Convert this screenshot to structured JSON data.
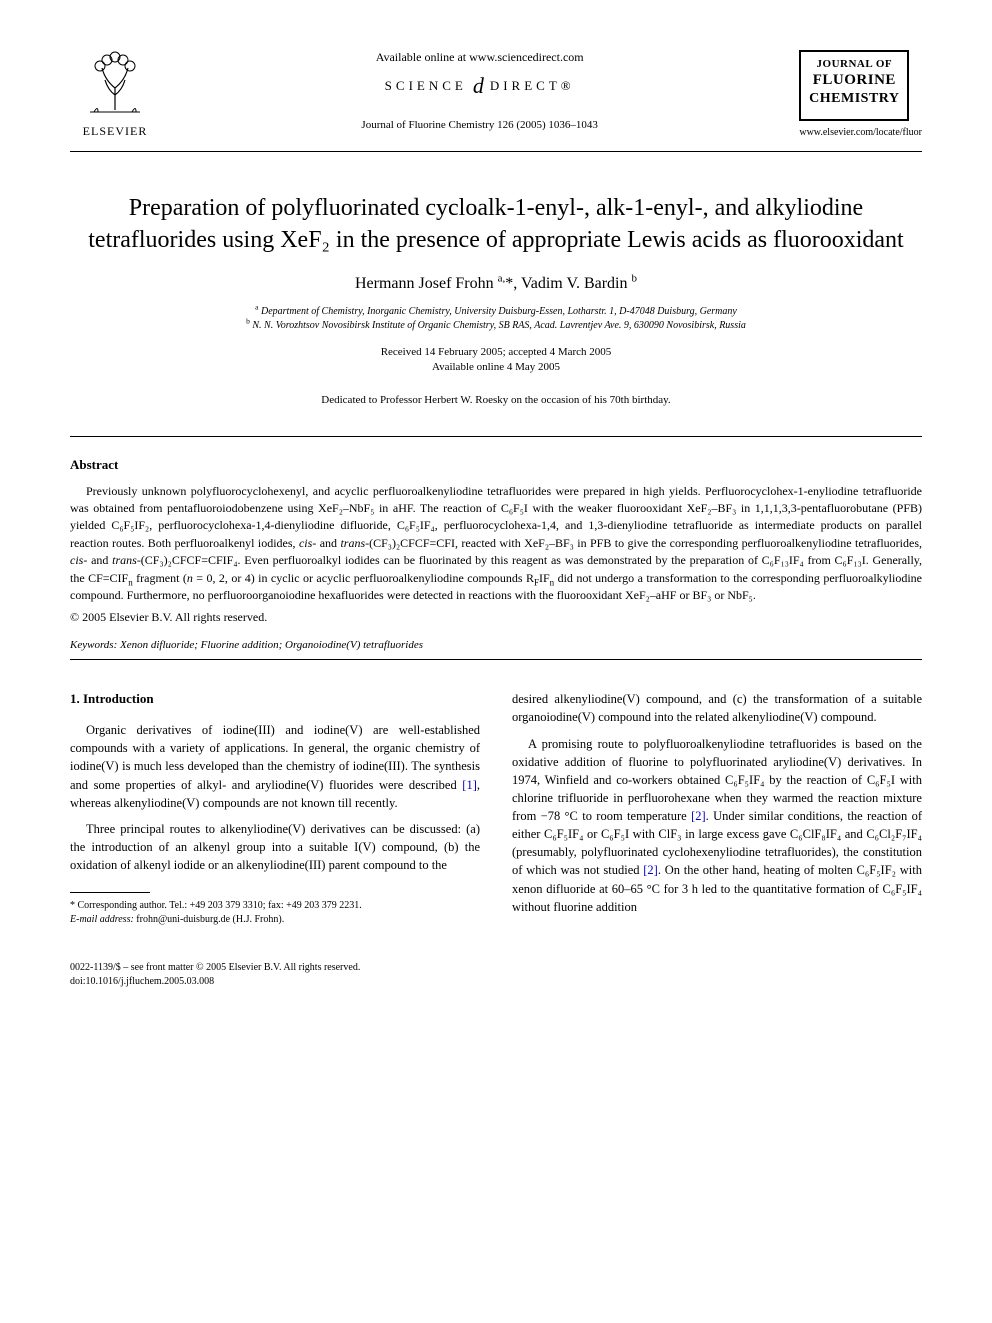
{
  "header": {
    "available_online": "Available online at www.sciencedirect.com",
    "sciencedirect_left": "SCIENCE",
    "sciencedirect_right": "DIRECT®",
    "citation": "Journal of Fluorine Chemistry 126 (2005) 1036–1043",
    "elsevier": "ELSEVIER",
    "journal_logo": {
      "line1": "JOURNAL OF",
      "line2": "FLUORINE",
      "line3": "CHEMISTRY"
    },
    "journal_url": "www.elsevier.com/locate/fluor"
  },
  "title": "Preparation of polyfluorinated cycloalk-1-enyl-, alk-1-enyl-, and alkyliodine tetrafluorides using XeF₂ in the presence of appropriate Lewis acids as fluorooxidant",
  "authors_html": "Hermann Josef Frohn <sup>a,</sup>*, Vadim V. Bardin <sup>b</sup>",
  "affiliations": {
    "a": "Department of Chemistry, Inorganic Chemistry, University Duisburg-Essen, Lotharstr. 1, D-47048 Duisburg, Germany",
    "b": "N. N. Vorozhtsov Novosibirsk Institute of Organic Chemistry, SB RAS, Acad. Lavrentjev Ave. 9, 630090 Novosibirsk, Russia"
  },
  "dates": {
    "received": "Received 14 February 2005; accepted 4 March 2005",
    "online": "Available online 4 May 2005"
  },
  "dedication": "Dedicated to Professor Herbert W. Roesky on the occasion of his 70th birthday.",
  "abstract": {
    "heading": "Abstract",
    "body_html": "Previously unknown polyfluorocyclohexenyl, and acyclic perfluoroalkenyliodine tetrafluorides were prepared in high yields. Perfluorocyclohex-1-enyliodine tetrafluoride was obtained from pentafluoroiodobenzene using XeF₂–NbF₅ in aHF. The reaction of C₆F₅I with the weaker fluorooxidant XeF₂–BF₃ in 1,1,1,3,3-pentafluorobutane (PFB) yielded C₆F₅IF₂, perfluorocyclohexa-1,4-dienyliodine difluoride, C₆F₅IF₄, perfluorocyclohexa-1,4, and 1,3-dienyliodine tetrafluoride as intermediate products on parallel reaction routes. Both perfluoroalkenyl iodides, <i>cis</i>- and <i>trans</i>-(CF₃)₂CFCF=CFI, reacted with XeF₂–BF₃ in PFB to give the corresponding perfluoroalkenyliodine tetrafluorides, <i>cis</i>- and <i>trans</i>-(CF₃)₂CFCF=CFIF₄. Even perfluoroalkyl iodides can be fluorinated by this reagent as was demonstrated by the preparation of C₆F₁₃IF₄ from C₆F₁₃I. Generally, the CF=CIF<sub>n</sub> fragment (<i>n</i> = 0, 2, or 4) in cyclic or acyclic perfluoroalkenyliodine compounds R<sub>F</sub>IF<sub>n</sub> did not undergo a transformation to the corresponding perfluoroalkyliodine compound. Furthermore, no perfluoroorganoiodine hexafluorides were detected in reactions with the fluorooxidant XeF₂–aHF or BF₃ or NbF₅.",
    "copyright": "© 2005 Elsevier B.V. All rights reserved."
  },
  "keywords": {
    "label": "Keywords:",
    "text": "Xenon difluoride; Fluorine addition; Organoiodine(V) tetrafluorides"
  },
  "intro": {
    "heading": "1. Introduction",
    "p1": "Organic derivatives of iodine(III) and iodine(V) are well-established compounds with a variety of applications. In general, the organic chemistry of iodine(V) is much less developed than the chemistry of iodine(III). The synthesis and some properties of alkyl- and aryliodine(V) fluorides were described ",
    "p1_ref": "[1]",
    "p1_cont": ", whereas alkenyliodine(V) compounds are not known till recently.",
    "p2": "Three principal routes to alkenyliodine(V) derivatives can be discussed: (a) the introduction of an alkenyl group into a suitable I(V) compound, (b) the oxidation of alkenyl iodide or an alkenyliodine(III) parent compound to the",
    "p3": "desired alkenyliodine(V) compound, and (c) the transformation of a suitable organoiodine(V) compound into the related alkenyliodine(V) compound.",
    "p4a": "A promising route to polyfluoroalkenyliodine tetrafluorides is based on the oxidative addition of fluorine to polyfluorinated aryliodine(V) derivatives. In 1974, Winfield and co-workers obtained C₆F₅IF₄ by the reaction of C₆F₅I with chlorine trifluoride in perfluorohexane when they warmed the reaction mixture from −78 °C to room temperature ",
    "p4_ref1": "[2]",
    "p4b": ". Under similar conditions, the reaction of either C₆F₅IF₄ or C₆F₅I with ClF₃ in large excess gave C₆ClF₈IF₄ and C₆Cl₂F₇IF₄ (presumably, polyfluorinated cyclohexenyliodine tetrafluorides), the constitution of which was not studied ",
    "p4_ref2": "[2]",
    "p4c": ". On the other hand, heating of molten C₆F₅IF₂ with xenon difluoride at 60–65 °C for 3 h led to the quantitative formation of C₆F₅IF₄ without fluorine addition"
  },
  "footnote": {
    "corr": "* Corresponding author. Tel.: +49 203 379 3310; fax: +49 203 379 2231.",
    "email_label": "E-mail address:",
    "email": "frohn@uni-duisburg.de (H.J. Frohn)."
  },
  "footer": {
    "line1": "0022-1139/$ – see front matter © 2005 Elsevier B.V. All rights reserved.",
    "line2": "doi:10.1016/j.jfluchem.2005.03.008"
  },
  "colors": {
    "text": "#000000",
    "background": "#ffffff",
    "link": "#0000cc"
  }
}
